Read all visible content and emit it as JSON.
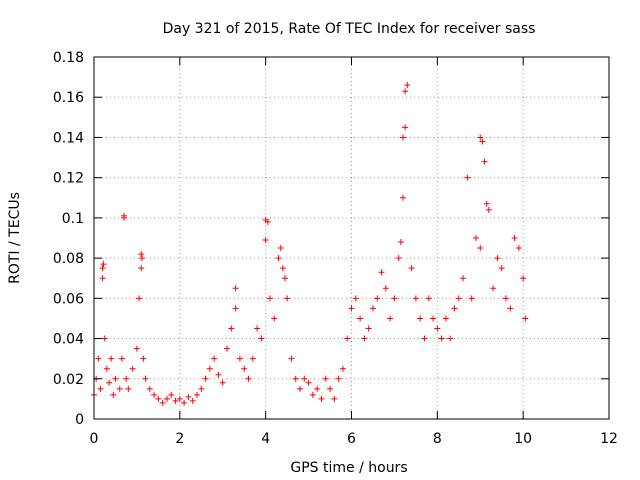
{
  "chart_data": {
    "type": "scatter",
    "title": "Day 321 of 2015, Rate Of TEC Index for receiver sass",
    "xlabel": "GPS time / hours",
    "ylabel": "ROTI / TECUs",
    "xlim": [
      0,
      12
    ],
    "ylim": [
      0,
      0.18
    ],
    "xticks": [
      0,
      2,
      4,
      6,
      8,
      10,
      12
    ],
    "xtick_labels": [
      "0",
      "2",
      "4",
      "6",
      "8",
      "10",
      "12"
    ],
    "yticks": [
      0,
      0.02,
      0.04,
      0.06,
      0.08,
      0.1,
      0.12,
      0.14,
      0.16,
      0.18
    ],
    "ytick_labels": [
      "0",
      "0.02",
      "0.04",
      "0.06",
      "0.08",
      "0.1",
      "0.12",
      "0.14",
      "0.16",
      "0.18"
    ],
    "grid": true,
    "marker": "+",
    "series": [
      {
        "name": "ROTI",
        "color": "#ff0000",
        "x": [
          0.0,
          0.05,
          0.1,
          0.15,
          0.2,
          0.2,
          0.22,
          0.25,
          0.3,
          0.35,
          0.4,
          0.45,
          0.5,
          0.6,
          0.65,
          0.7,
          0.7,
          0.75,
          0.8,
          0.9,
          1.0,
          1.05,
          1.1,
          1.1,
          1.12,
          1.15,
          1.2,
          1.3,
          1.4,
          1.5,
          1.6,
          1.7,
          1.8,
          1.9,
          2.0,
          2.1,
          2.2,
          2.3,
          2.4,
          2.5,
          2.6,
          2.7,
          2.8,
          2.9,
          3.0,
          3.1,
          3.2,
          3.3,
          3.3,
          3.4,
          3.5,
          3.6,
          3.7,
          3.8,
          3.9,
          4.0,
          4.0,
          4.05,
          4.1,
          4.2,
          4.3,
          4.35,
          4.4,
          4.45,
          4.5,
          4.6,
          4.7,
          4.8,
          4.9,
          5.0,
          5.1,
          5.2,
          5.3,
          5.4,
          5.5,
          5.6,
          5.7,
          5.8,
          5.9,
          6.0,
          6.1,
          6.2,
          6.3,
          6.4,
          6.5,
          6.6,
          6.7,
          6.8,
          6.9,
          7.0,
          7.1,
          7.15,
          7.2,
          7.2,
          7.25,
          7.25,
          7.3,
          7.4,
          7.5,
          7.6,
          7.7,
          7.8,
          7.9,
          8.0,
          8.1,
          8.2,
          8.3,
          8.4,
          8.5,
          8.6,
          8.7,
          8.8,
          8.9,
          9.0,
          9.0,
          9.05,
          9.1,
          9.15,
          9.2,
          9.3,
          9.4,
          9.5,
          9.6,
          9.7,
          9.8,
          9.9,
          10.0,
          10.05
        ],
        "y": [
          0.012,
          0.02,
          0.03,
          0.015,
          0.075,
          0.07,
          0.077,
          0.04,
          0.025,
          0.018,
          0.03,
          0.012,
          0.02,
          0.015,
          0.03,
          0.101,
          0.1,
          0.02,
          0.015,
          0.025,
          0.035,
          0.06,
          0.082,
          0.075,
          0.08,
          0.03,
          0.02,
          0.015,
          0.012,
          0.01,
          0.008,
          0.01,
          0.012,
          0.009,
          0.01,
          0.008,
          0.011,
          0.009,
          0.012,
          0.015,
          0.02,
          0.025,
          0.03,
          0.022,
          0.018,
          0.035,
          0.045,
          0.065,
          0.055,
          0.03,
          0.025,
          0.02,
          0.03,
          0.045,
          0.04,
          0.089,
          0.099,
          0.098,
          0.06,
          0.05,
          0.08,
          0.085,
          0.075,
          0.07,
          0.06,
          0.03,
          0.02,
          0.015,
          0.02,
          0.018,
          0.012,
          0.015,
          0.01,
          0.02,
          0.015,
          0.01,
          0.02,
          0.025,
          0.04,
          0.055,
          0.06,
          0.05,
          0.04,
          0.045,
          0.055,
          0.06,
          0.073,
          0.065,
          0.05,
          0.06,
          0.08,
          0.088,
          0.11,
          0.14,
          0.145,
          0.163,
          0.166,
          0.075,
          0.06,
          0.05,
          0.04,
          0.06,
          0.05,
          0.045,
          0.04,
          0.05,
          0.04,
          0.055,
          0.06,
          0.07,
          0.12,
          0.06,
          0.09,
          0.085,
          0.14,
          0.138,
          0.128,
          0.107,
          0.104,
          0.065,
          0.08,
          0.075,
          0.06,
          0.055,
          0.09,
          0.085,
          0.07,
          0.05
        ]
      }
    ]
  }
}
